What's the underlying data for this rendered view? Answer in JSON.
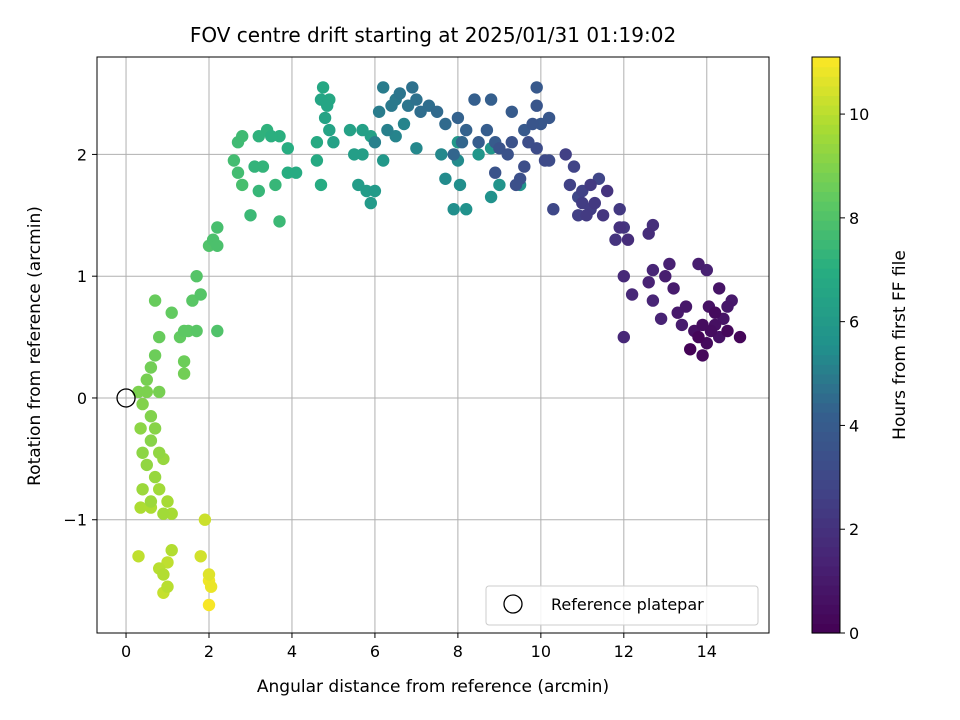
{
  "chart_data": {
    "type": "scatter",
    "title": "FOV centre drift starting at 2025/01/31 01:19:02",
    "xlabel": "Angular distance from reference (arcmin)",
    "ylabel": "Rotation from reference (arcmin)",
    "xlim": [
      -0.7,
      15.5
    ],
    "ylim": [
      -1.93,
      2.8
    ],
    "xticks": [
      0,
      2,
      4,
      6,
      8,
      10,
      12,
      14
    ],
    "yticks": [
      -1,
      0,
      1,
      2
    ],
    "xtick_labels": [
      "0",
      "2",
      "4",
      "6",
      "8",
      "10",
      "12",
      "14"
    ],
    "ytick_labels": [
      "−1",
      "0",
      "1",
      "2"
    ],
    "grid": true,
    "colormap": "viridis",
    "colorbar": {
      "label": "Hours from first FF file",
      "range": [
        0,
        11.1
      ],
      "ticks": [
        0,
        2,
        4,
        6,
        8,
        10
      ],
      "tick_labels": [
        "0",
        "2",
        "4",
        "6",
        "8",
        "10"
      ]
    },
    "reference_point": {
      "x": 0,
      "y": 0,
      "marker": "open-circle"
    },
    "legend": {
      "position": "bottom-right",
      "entries": [
        "Reference platepar"
      ]
    },
    "series": [
      {
        "color_by": "hours",
        "points": [
          [
            13.6,
            0.4,
            0.1
          ],
          [
            13.8,
            0.5,
            0.2
          ],
          [
            13.9,
            0.35,
            0.3
          ],
          [
            14.0,
            0.45,
            0.4
          ],
          [
            14.1,
            0.55,
            0.5
          ],
          [
            14.2,
            0.6,
            0.6
          ],
          [
            14.3,
            0.5,
            0.7
          ],
          [
            14.4,
            0.65,
            0.8
          ],
          [
            14.5,
            0.75,
            0.9
          ],
          [
            14.6,
            0.8,
            1.0
          ],
          [
            14.8,
            0.5,
            0.2
          ],
          [
            14.5,
            0.55,
            0.3
          ],
          [
            14.2,
            0.7,
            0.4
          ],
          [
            13.9,
            0.6,
            0.5
          ],
          [
            13.7,
            0.55,
            0.6
          ],
          [
            14.05,
            0.75,
            0.7
          ],
          [
            14.3,
            0.9,
            0.8
          ],
          [
            13.5,
            0.75,
            0.9
          ],
          [
            13.3,
            0.7,
            1.0
          ],
          [
            13.2,
            0.9,
            1.1
          ],
          [
            13.0,
            1.0,
            1.2
          ],
          [
            13.1,
            1.1,
            1.3
          ],
          [
            13.8,
            1.1,
            1.2
          ],
          [
            14.0,
            1.05,
            1.3
          ],
          [
            13.4,
            0.6,
            1.1
          ],
          [
            12.9,
            0.65,
            1.4
          ],
          [
            12.7,
            0.8,
            1.5
          ],
          [
            12.6,
            0.95,
            1.4
          ],
          [
            12.7,
            1.05,
            1.5
          ],
          [
            12.2,
            0.85,
            1.6
          ],
          [
            12.0,
            1.0,
            1.7
          ],
          [
            12.0,
            0.5,
            1.6
          ],
          [
            12.6,
            1.35,
            1.8
          ],
          [
            12.7,
            1.42,
            1.9
          ],
          [
            12.1,
            1.3,
            1.8
          ],
          [
            11.9,
            1.4,
            2.0
          ],
          [
            11.8,
            1.3,
            2.1
          ],
          [
            12.0,
            1.4,
            2.2
          ],
          [
            11.6,
            1.7,
            2.1
          ],
          [
            11.9,
            1.55,
            2.3
          ],
          [
            11.5,
            1.5,
            2.2
          ],
          [
            11.3,
            1.6,
            2.3
          ],
          [
            11.2,
            1.75,
            2.4
          ],
          [
            11.0,
            1.6,
            2.5
          ],
          [
            11.1,
            1.5,
            2.4
          ],
          [
            10.9,
            1.5,
            2.6
          ],
          [
            10.7,
            1.75,
            2.7
          ],
          [
            10.8,
            1.9,
            2.8
          ],
          [
            10.6,
            2.0,
            2.6
          ],
          [
            11.4,
            1.8,
            2.9
          ],
          [
            11.2,
            1.55,
            2.5
          ],
          [
            11.0,
            1.7,
            2.7
          ],
          [
            10.9,
            1.65,
            3.0
          ],
          [
            10.3,
            1.55,
            3.0
          ],
          [
            10.1,
            1.95,
            3.1
          ],
          [
            10.2,
            1.95,
            3.2
          ],
          [
            9.9,
            2.05,
            3.2
          ],
          [
            9.7,
            2.1,
            3.3
          ],
          [
            9.6,
            1.9,
            3.3
          ],
          [
            9.5,
            1.8,
            3.4
          ],
          [
            9.4,
            1.75,
            3.4
          ],
          [
            9.3,
            2.1,
            3.5
          ],
          [
            9.2,
            2.0,
            3.5
          ],
          [
            9.0,
            2.05,
            3.6
          ],
          [
            8.9,
            1.85,
            3.6
          ],
          [
            9.8,
            2.25,
            3.7
          ],
          [
            9.9,
            2.4,
            3.7
          ],
          [
            10.0,
            2.25,
            3.8
          ],
          [
            10.2,
            2.3,
            3.8
          ],
          [
            9.9,
            2.55,
            3.9
          ],
          [
            9.6,
            2.2,
            3.9
          ],
          [
            9.3,
            2.35,
            4.0
          ],
          [
            8.9,
            2.1,
            4.0
          ],
          [
            8.7,
            2.2,
            4.1
          ],
          [
            8.5,
            2.1,
            4.1
          ],
          [
            8.8,
            2.45,
            4.2
          ],
          [
            8.4,
            2.45,
            4.2
          ],
          [
            8.2,
            2.2,
            4.3
          ],
          [
            8.0,
            2.3,
            4.3
          ],
          [
            8.1,
            2.1,
            4.4
          ],
          [
            7.9,
            2.0,
            4.4
          ],
          [
            7.7,
            2.25,
            4.5
          ],
          [
            7.5,
            2.35,
            4.5
          ],
          [
            7.3,
            2.4,
            4.6
          ],
          [
            7.1,
            2.35,
            4.6
          ],
          [
            7.0,
            2.45,
            4.7
          ],
          [
            6.9,
            2.55,
            4.7
          ],
          [
            6.8,
            2.4,
            4.8
          ],
          [
            6.6,
            2.5,
            4.8
          ],
          [
            6.5,
            2.45,
            4.9
          ],
          [
            6.4,
            2.4,
            4.9
          ],
          [
            6.2,
            2.55,
            5.0
          ],
          [
            6.1,
            2.35,
            5.0
          ],
          [
            6.0,
            2.1,
            5.1
          ],
          [
            6.3,
            2.2,
            5.1
          ],
          [
            6.5,
            2.15,
            5.2
          ],
          [
            6.7,
            2.25,
            5.2
          ],
          [
            7.0,
            2.05,
            5.3
          ],
          [
            7.6,
            2.0,
            5.3
          ],
          [
            7.7,
            1.8,
            5.4
          ],
          [
            8.0,
            1.95,
            5.4
          ],
          [
            8.05,
            1.75,
            5.5
          ],
          [
            7.9,
            1.55,
            5.5
          ],
          [
            8.2,
            1.55,
            5.6
          ],
          [
            8.8,
            1.65,
            5.6
          ],
          [
            9.0,
            1.75,
            5.7
          ],
          [
            9.5,
            1.75,
            5.7
          ],
          [
            8.8,
            2.05,
            5.8
          ],
          [
            8.5,
            2.0,
            5.8
          ],
          [
            8.0,
            2.1,
            5.9
          ],
          [
            6.2,
            1.95,
            5.9
          ],
          [
            6.0,
            1.7,
            6.0
          ],
          [
            5.9,
            1.6,
            6.0
          ],
          [
            5.8,
            1.7,
            6.1
          ],
          [
            5.6,
            1.75,
            6.1
          ],
          [
            5.7,
            2.0,
            6.2
          ],
          [
            5.5,
            2.0,
            6.2
          ],
          [
            5.9,
            2.15,
            6.3
          ],
          [
            5.7,
            2.2,
            6.3
          ],
          [
            5.4,
            2.2,
            6.4
          ],
          [
            5.0,
            2.1,
            6.4
          ],
          [
            4.9,
            2.2,
            6.5
          ],
          [
            4.8,
            2.3,
            6.5
          ],
          [
            4.85,
            2.4,
            6.6
          ],
          [
            4.7,
            2.45,
            6.6
          ],
          [
            4.9,
            2.45,
            6.7
          ],
          [
            4.75,
            2.55,
            6.7
          ],
          [
            4.6,
            2.1,
            6.8
          ],
          [
            4.6,
            1.95,
            6.8
          ],
          [
            4.7,
            1.75,
            6.9
          ],
          [
            4.1,
            1.85,
            6.9
          ],
          [
            3.9,
            1.85,
            7.0
          ],
          [
            3.9,
            2.05,
            7.0
          ],
          [
            3.7,
            2.15,
            7.1
          ],
          [
            3.5,
            2.15,
            7.1
          ],
          [
            3.4,
            2.2,
            7.2
          ],
          [
            3.2,
            2.15,
            7.2
          ],
          [
            3.3,
            1.9,
            7.3
          ],
          [
            3.1,
            1.9,
            7.3
          ],
          [
            3.2,
            1.7,
            7.4
          ],
          [
            3.6,
            1.75,
            7.4
          ],
          [
            3.7,
            1.45,
            7.5
          ],
          [
            3.0,
            1.5,
            7.5
          ],
          [
            2.8,
            2.15,
            7.6
          ],
          [
            2.7,
            2.1,
            7.6
          ],
          [
            2.6,
            1.95,
            7.7
          ],
          [
            2.7,
            1.85,
            7.7
          ],
          [
            2.8,
            1.75,
            7.8
          ],
          [
            2.2,
            1.4,
            7.8
          ],
          [
            2.1,
            1.3,
            7.9
          ],
          [
            2.2,
            1.25,
            7.9
          ],
          [
            2.0,
            1.25,
            8.0
          ],
          [
            2.2,
            0.55,
            8.0
          ],
          [
            1.8,
            0.85,
            8.1
          ],
          [
            1.7,
            1.0,
            8.1
          ],
          [
            1.6,
            0.8,
            8.2
          ],
          [
            1.7,
            0.55,
            8.2
          ],
          [
            1.5,
            0.55,
            8.3
          ],
          [
            1.4,
            0.55,
            8.3
          ],
          [
            1.3,
            0.5,
            8.4
          ],
          [
            1.1,
            0.7,
            8.4
          ],
          [
            0.7,
            0.8,
            8.5
          ],
          [
            0.8,
            0.5,
            8.5
          ],
          [
            0.7,
            0.35,
            8.6
          ],
          [
            1.4,
            0.3,
            8.6
          ],
          [
            1.4,
            0.2,
            8.7
          ],
          [
            0.6,
            0.25,
            8.7
          ],
          [
            0.5,
            0.15,
            8.8
          ],
          [
            0.8,
            0.05,
            8.8
          ],
          [
            0.5,
            0.05,
            8.9
          ],
          [
            0.3,
            0.05,
            8.9
          ],
          [
            0.4,
            -0.05,
            9.0
          ],
          [
            0.6,
            -0.15,
            9.0
          ],
          [
            0.7,
            -0.25,
            9.1
          ],
          [
            0.6,
            -0.35,
            9.1
          ],
          [
            0.35,
            -0.25,
            9.2
          ],
          [
            0.4,
            -0.45,
            9.2
          ],
          [
            0.5,
            -0.55,
            9.3
          ],
          [
            0.8,
            -0.45,
            9.3
          ],
          [
            0.9,
            -0.5,
            9.4
          ],
          [
            0.7,
            -0.65,
            9.4
          ],
          [
            0.4,
            -0.75,
            9.5
          ],
          [
            0.6,
            -0.85,
            9.5
          ],
          [
            0.8,
            -0.75,
            9.6
          ],
          [
            0.9,
            -0.95,
            9.6
          ],
          [
            1.0,
            -0.85,
            9.7
          ],
          [
            1.1,
            -0.95,
            9.7
          ],
          [
            0.6,
            -0.9,
            9.8
          ],
          [
            0.35,
            -0.9,
            9.8
          ],
          [
            1.1,
            -1.25,
            9.9
          ],
          [
            0.9,
            -1.45,
            9.9
          ],
          [
            1.0,
            -1.55,
            10.0
          ],
          [
            0.8,
            -1.4,
            10.0
          ],
          [
            1.0,
            -1.35,
            10.1
          ],
          [
            0.3,
            -1.3,
            10.1
          ],
          [
            0.9,
            -1.6,
            10.2
          ],
          [
            1.9,
            -1.0,
            10.3
          ],
          [
            1.8,
            -1.3,
            10.4
          ],
          [
            2.0,
            -1.45,
            10.6
          ],
          [
            2.05,
            -1.55,
            10.8
          ],
          [
            2.0,
            -1.7,
            11.0
          ],
          [
            2.0,
            -1.5,
            10.9
          ]
        ]
      }
    ]
  }
}
